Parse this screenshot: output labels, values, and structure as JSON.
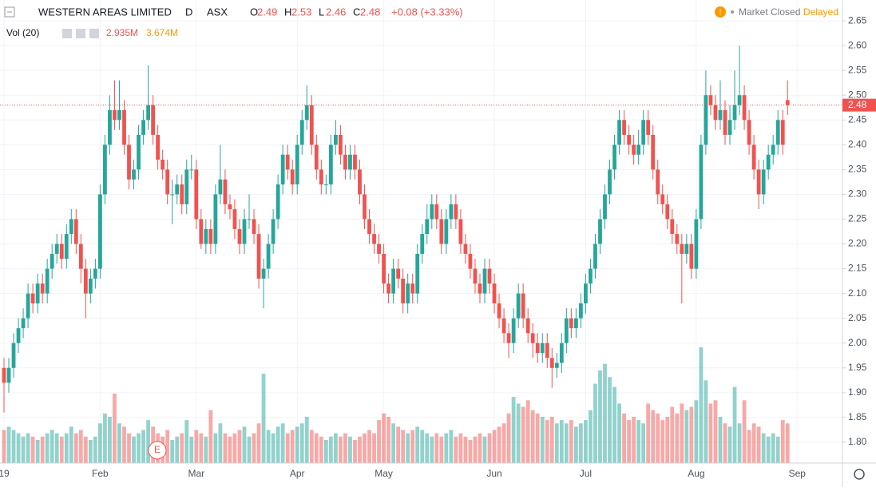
{
  "header": {
    "symbol": "WESTERN AREAS LIMITED",
    "interval": "D",
    "exchange": "ASX",
    "ohlc": [
      {
        "key": "O",
        "value": "2.49"
      },
      {
        "key": "H",
        "value": "2.53"
      },
      {
        "key": "L",
        "value": "2.46"
      },
      {
        "key": "C",
        "value": "2.48"
      }
    ],
    "change": "+0.08 (+3.33%)",
    "status": "Market Closed",
    "delay": "Delayed",
    "volume_label": "Vol (20)",
    "volume_value": "2.935M",
    "volume_ma": "3.674M",
    "earnings": "E"
  },
  "chart_data": {
    "type": "candlestick",
    "up_color": "#26a69a",
    "down_color": "#ef5350",
    "ylim": [
      1.758,
      2.692
    ],
    "yticks": [
      {
        "value": 1.8,
        "label": "1.80"
      },
      {
        "value": 1.85,
        "label": "1.85"
      },
      {
        "value": 1.9,
        "label": "1.90"
      },
      {
        "value": 1.95,
        "label": "1.95"
      },
      {
        "value": 2.0,
        "label": "2.00"
      },
      {
        "value": 2.05,
        "label": "2.05"
      },
      {
        "value": 2.1,
        "label": "2.10"
      },
      {
        "value": 2.15,
        "label": "2.15"
      },
      {
        "value": 2.2,
        "label": "2.20"
      },
      {
        "value": 2.25,
        "label": "2.25"
      },
      {
        "value": 2.3,
        "label": "2.30"
      },
      {
        "value": 2.35,
        "label": "2.35"
      },
      {
        "value": 2.4,
        "label": "2.40"
      },
      {
        "value": 2.45,
        "label": "2.45"
      },
      {
        "value": 2.5,
        "label": "2.50"
      },
      {
        "value": 2.55,
        "label": "2.55"
      },
      {
        "value": 2.6,
        "label": "2.60"
      },
      {
        "value": 2.65,
        "label": "2.65"
      }
    ],
    "x_labels": [
      {
        "at": 0,
        "label": "19"
      },
      {
        "at": 20,
        "label": "Feb"
      },
      {
        "at": 40,
        "label": "Mar"
      },
      {
        "at": 61,
        "label": "Apr"
      },
      {
        "at": 79,
        "label": "May"
      },
      {
        "at": 102,
        "label": "Jun"
      },
      {
        "at": 121,
        "label": "Jul"
      },
      {
        "at": 144,
        "label": "Aug"
      },
      {
        "at": 165,
        "label": "Sep"
      }
    ],
    "grid": true,
    "candles": [
      [
        1.95,
        1.97,
        1.86,
        1.92,
        1.0
      ],
      [
        1.92,
        1.97,
        1.9,
        1.95,
        1.1
      ],
      [
        1.95,
        2.02,
        1.93,
        2.0,
        1.0
      ],
      [
        2.0,
        2.05,
        1.98,
        2.03,
        0.9
      ],
      [
        2.03,
        2.07,
        2.01,
        2.05,
        0.8
      ],
      [
        2.05,
        2.12,
        2.03,
        2.1,
        0.9
      ],
      [
        2.1,
        2.12,
        2.06,
        2.08,
        0.8
      ],
      [
        2.08,
        2.14,
        2.06,
        2.12,
        0.7
      ],
      [
        2.12,
        2.14,
        2.08,
        2.1,
        0.8
      ],
      [
        2.1,
        2.17,
        2.08,
        2.15,
        0.9
      ],
      [
        2.15,
        2.2,
        2.13,
        2.18,
        1.0
      ],
      [
        2.18,
        2.22,
        2.16,
        2.2,
        0.9
      ],
      [
        2.2,
        2.22,
        2.15,
        2.17,
        0.8
      ],
      [
        2.17,
        2.24,
        2.15,
        2.22,
        0.9
      ],
      [
        2.22,
        2.27,
        2.2,
        2.25,
        1.1
      ],
      [
        2.25,
        2.27,
        2.18,
        2.2,
        0.9
      ],
      [
        2.2,
        2.22,
        2.12,
        2.15,
        1.0
      ],
      [
        2.15,
        2.17,
        2.05,
        2.1,
        0.8
      ],
      [
        2.1,
        2.15,
        2.08,
        2.13,
        0.7
      ],
      [
        2.13,
        2.17,
        2.11,
        2.15,
        0.8
      ],
      [
        2.15,
        2.32,
        2.13,
        2.3,
        1.2
      ],
      [
        2.3,
        2.42,
        2.28,
        2.4,
        1.5
      ],
      [
        2.4,
        2.5,
        2.38,
        2.47,
        1.4
      ],
      [
        2.47,
        2.53,
        2.43,
        2.45,
        2.1
      ],
      [
        2.45,
        2.53,
        2.43,
        2.47,
        1.2
      ],
      [
        2.47,
        2.49,
        2.38,
        2.4,
        1.1
      ],
      [
        2.4,
        2.42,
        2.31,
        2.33,
        0.9
      ],
      [
        2.33,
        2.37,
        2.31,
        2.35,
        0.8
      ],
      [
        2.35,
        2.44,
        2.33,
        2.42,
        0.9
      ],
      [
        2.42,
        2.47,
        2.4,
        2.45,
        1.0
      ],
      [
        2.45,
        2.56,
        2.43,
        2.48,
        1.3
      ],
      [
        2.48,
        2.5,
        2.4,
        2.42,
        1.1
      ],
      [
        2.42,
        2.44,
        2.35,
        2.37,
        0.9
      ],
      [
        2.37,
        2.39,
        2.33,
        2.35,
        0.8
      ],
      [
        2.35,
        2.37,
        2.28,
        2.3,
        1.0
      ],
      [
        2.3,
        2.33,
        2.24,
        2.3,
        0.7
      ],
      [
        2.3,
        2.34,
        2.28,
        2.32,
        0.8
      ],
      [
        2.32,
        2.34,
        2.26,
        2.28,
        0.9
      ],
      [
        2.28,
        2.37,
        2.26,
        2.35,
        1.3
      ],
      [
        2.35,
        2.38,
        2.33,
        2.35,
        0.8
      ],
      [
        2.35,
        2.37,
        2.23,
        2.25,
        1.0
      ],
      [
        2.25,
        2.27,
        2.19,
        2.2,
        0.9
      ],
      [
        2.2,
        2.25,
        2.18,
        2.23,
        0.8
      ],
      [
        2.23,
        2.25,
        2.18,
        2.2,
        1.6
      ],
      [
        2.2,
        2.32,
        2.18,
        2.3,
        0.9
      ],
      [
        2.3,
        2.4,
        2.28,
        2.33,
        1.2
      ],
      [
        2.33,
        2.35,
        2.26,
        2.28,
        0.9
      ],
      [
        2.28,
        2.3,
        2.25,
        2.27,
        0.8
      ],
      [
        2.27,
        2.29,
        2.21,
        2.23,
        0.9
      ],
      [
        2.23,
        2.25,
        2.18,
        2.2,
        1.0
      ],
      [
        2.2,
        2.27,
        2.18,
        2.25,
        1.1
      ],
      [
        2.25,
        2.3,
        2.23,
        2.25,
        0.8
      ],
      [
        2.25,
        2.27,
        2.2,
        2.22,
        0.9
      ],
      [
        2.22,
        2.24,
        2.11,
        2.13,
        1.2
      ],
      [
        2.13,
        2.17,
        2.07,
        2.15,
        2.7
      ],
      [
        2.15,
        2.22,
        2.13,
        2.2,
        1.0
      ],
      [
        2.2,
        2.27,
        2.18,
        2.25,
        0.9
      ],
      [
        2.25,
        2.34,
        2.23,
        2.32,
        1.1
      ],
      [
        2.32,
        2.4,
        2.3,
        2.38,
        1.2
      ],
      [
        2.38,
        2.4,
        2.33,
        2.35,
        0.9
      ],
      [
        2.35,
        2.37,
        2.3,
        2.32,
        1.0
      ],
      [
        2.32,
        2.42,
        2.3,
        2.4,
        1.1
      ],
      [
        2.4,
        2.47,
        2.38,
        2.45,
        1.2
      ],
      [
        2.45,
        2.52,
        2.43,
        2.48,
        1.4
      ],
      [
        2.48,
        2.5,
        2.38,
        2.4,
        1.0
      ],
      [
        2.4,
        2.42,
        2.33,
        2.35,
        0.9
      ],
      [
        2.35,
        2.37,
        2.3,
        2.32,
        0.8
      ],
      [
        2.32,
        2.34,
        2.3,
        2.32,
        0.7
      ],
      [
        2.32,
        2.42,
        2.3,
        2.4,
        0.8
      ],
      [
        2.4,
        2.45,
        2.38,
        2.42,
        0.9
      ],
      [
        2.42,
        2.44,
        2.36,
        2.38,
        0.8
      ],
      [
        2.38,
        2.4,
        2.33,
        2.35,
        0.9
      ],
      [
        2.35,
        2.4,
        2.33,
        2.38,
        0.8
      ],
      [
        2.38,
        2.4,
        2.33,
        2.35,
        0.7
      ],
      [
        2.35,
        2.37,
        2.28,
        2.3,
        0.8
      ],
      [
        2.3,
        2.32,
        2.23,
        2.25,
        0.9
      ],
      [
        2.25,
        2.27,
        2.2,
        2.22,
        1.0
      ],
      [
        2.22,
        2.24,
        2.18,
        2.2,
        0.9
      ],
      [
        2.2,
        2.22,
        2.16,
        2.18,
        1.3
      ],
      [
        2.18,
        2.2,
        2.1,
        2.12,
        1.5
      ],
      [
        2.12,
        2.14,
        2.08,
        2.1,
        1.4
      ],
      [
        2.1,
        2.17,
        2.08,
        2.15,
        1.2
      ],
      [
        2.15,
        2.17,
        2.11,
        2.13,
        1.1
      ],
      [
        2.13,
        2.15,
        2.06,
        2.08,
        1.0
      ],
      [
        2.08,
        2.14,
        2.06,
        2.12,
        0.9
      ],
      [
        2.12,
        2.14,
        2.08,
        2.1,
        1.0
      ],
      [
        2.1,
        2.2,
        2.08,
        2.18,
        1.1
      ],
      [
        2.18,
        2.24,
        2.16,
        2.22,
        1.0
      ],
      [
        2.22,
        2.28,
        2.2,
        2.25,
        0.9
      ],
      [
        2.25,
        2.3,
        2.23,
        2.28,
        0.8
      ],
      [
        2.28,
        2.3,
        2.23,
        2.25,
        0.9
      ],
      [
        2.25,
        2.27,
        2.18,
        2.2,
        0.8
      ],
      [
        2.2,
        2.27,
        2.18,
        2.25,
        0.9
      ],
      [
        2.25,
        2.3,
        2.23,
        2.28,
        1.0
      ],
      [
        2.28,
        2.3,
        2.23,
        2.25,
        0.8
      ],
      [
        2.25,
        2.27,
        2.18,
        2.2,
        0.9
      ],
      [
        2.2,
        2.22,
        2.16,
        2.18,
        0.8
      ],
      [
        2.18,
        2.2,
        2.13,
        2.15,
        0.7
      ],
      [
        2.15,
        2.17,
        2.1,
        2.12,
        0.8
      ],
      [
        2.12,
        2.14,
        2.08,
        2.1,
        0.9
      ],
      [
        2.1,
        2.17,
        2.08,
        2.15,
        0.8
      ],
      [
        2.15,
        2.17,
        2.1,
        2.12,
        0.9
      ],
      [
        2.12,
        2.14,
        2.06,
        2.08,
        1.0
      ],
      [
        2.08,
        2.1,
        2.03,
        2.05,
        1.1
      ],
      [
        2.05,
        2.07,
        2.0,
        2.02,
        1.2
      ],
      [
        2.02,
        2.04,
        1.97,
        2.0,
        1.5
      ],
      [
        2.0,
        2.07,
        1.98,
        2.05,
        2.0
      ],
      [
        2.05,
        2.12,
        2.03,
        2.1,
        1.8
      ],
      [
        2.1,
        2.12,
        2.03,
        2.05,
        1.7
      ],
      [
        2.05,
        2.07,
        2.0,
        2.02,
        1.9
      ],
      [
        2.02,
        2.04,
        1.97,
        2.0,
        1.6
      ],
      [
        2.0,
        2.02,
        1.96,
        1.98,
        1.5
      ],
      [
        1.98,
        2.02,
        1.96,
        2.0,
        1.4
      ],
      [
        2.0,
        2.02,
        1.95,
        1.97,
        1.3
      ],
      [
        1.97,
        1.99,
        1.91,
        1.95,
        1.4
      ],
      [
        1.95,
        1.98,
        1.93,
        1.96,
        1.2
      ],
      [
        1.96,
        2.02,
        1.94,
        2.0,
        1.3
      ],
      [
        2.0,
        2.07,
        1.98,
        2.05,
        1.2
      ],
      [
        2.05,
        2.07,
        2.01,
        2.03,
        1.3
      ],
      [
        2.03,
        2.07,
        2.01,
        2.05,
        1.1
      ],
      [
        2.05,
        2.1,
        2.03,
        2.08,
        1.2
      ],
      [
        2.08,
        2.14,
        2.06,
        2.12,
        1.3
      ],
      [
        2.12,
        2.17,
        2.1,
        2.15,
        1.6
      ],
      [
        2.15,
        2.22,
        2.13,
        2.2,
        2.4
      ],
      [
        2.2,
        2.27,
        2.18,
        2.25,
        2.8
      ],
      [
        2.25,
        2.32,
        2.23,
        2.3,
        3.0
      ],
      [
        2.3,
        2.37,
        2.28,
        2.35,
        2.6
      ],
      [
        2.35,
        2.42,
        2.33,
        2.4,
        2.3
      ],
      [
        2.4,
        2.47,
        2.38,
        2.45,
        1.8
      ],
      [
        2.45,
        2.47,
        2.4,
        2.42,
        1.5
      ],
      [
        2.42,
        2.44,
        2.38,
        2.4,
        1.3
      ],
      [
        2.4,
        2.42,
        2.36,
        2.38,
        1.4
      ],
      [
        2.38,
        2.43,
        2.36,
        2.4,
        1.3
      ],
      [
        2.4,
        2.47,
        2.38,
        2.45,
        1.2
      ],
      [
        2.45,
        2.47,
        2.4,
        2.42,
        1.8
      ],
      [
        2.42,
        2.44,
        2.33,
        2.35,
        1.6
      ],
      [
        2.35,
        2.37,
        2.28,
        2.3,
        1.5
      ],
      [
        2.3,
        2.32,
        2.26,
        2.28,
        1.3
      ],
      [
        2.28,
        2.3,
        2.23,
        2.25,
        1.4
      ],
      [
        2.25,
        2.27,
        2.2,
        2.22,
        1.7
      ],
      [
        2.22,
        2.24,
        2.18,
        2.2,
        1.5
      ],
      [
        2.2,
        2.22,
        2.08,
        2.18,
        1.8
      ],
      [
        2.18,
        2.22,
        2.16,
        2.2,
        1.6
      ],
      [
        2.2,
        2.22,
        2.13,
        2.15,
        1.7
      ],
      [
        2.15,
        2.27,
        2.13,
        2.25,
        1.9
      ],
      [
        2.25,
        2.42,
        2.23,
        2.4,
        3.5
      ],
      [
        2.4,
        2.55,
        2.38,
        2.5,
        2.5
      ],
      [
        2.5,
        2.52,
        2.46,
        2.48,
        1.8
      ],
      [
        2.48,
        2.5,
        2.43,
        2.45,
        1.9
      ],
      [
        2.45,
        2.53,
        2.43,
        2.47,
        1.4
      ],
      [
        2.47,
        2.49,
        2.4,
        2.42,
        1.2
      ],
      [
        2.42,
        2.48,
        2.4,
        2.45,
        1.1
      ],
      [
        2.45,
        2.55,
        2.43,
        2.48,
        2.3
      ],
      [
        2.48,
        2.6,
        2.46,
        2.5,
        1.2
      ],
      [
        2.5,
        2.52,
        2.43,
        2.45,
        1.9
      ],
      [
        2.45,
        2.47,
        2.38,
        2.4,
        1.0
      ],
      [
        2.4,
        2.42,
        2.33,
        2.35,
        1.2
      ],
      [
        2.35,
        2.37,
        2.27,
        2.3,
        1.1
      ],
      [
        2.3,
        2.37,
        2.28,
        2.35,
        0.9
      ],
      [
        2.35,
        2.4,
        2.33,
        2.38,
        0.8
      ],
      [
        2.38,
        2.42,
        2.36,
        2.4,
        0.9
      ],
      [
        2.4,
        2.47,
        2.38,
        2.45,
        0.8
      ],
      [
        2.45,
        2.47,
        2.38,
        2.4,
        1.3
      ],
      [
        2.49,
        2.53,
        2.46,
        2.48,
        1.2
      ]
    ]
  }
}
